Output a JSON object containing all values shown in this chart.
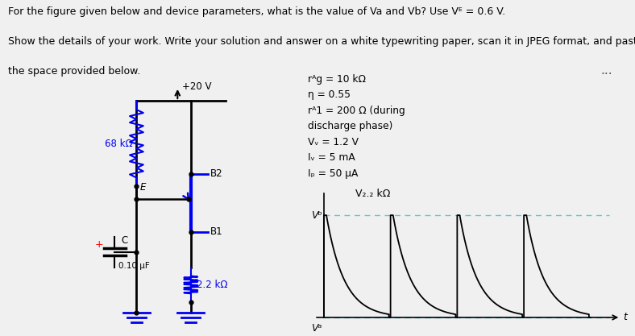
{
  "bg_color": "#f0f0f0",
  "white": "#ffffff",
  "black": "#000000",
  "blue": "#0000EE",
  "red": "#FF0000",
  "cyan_dash": "#5BC8D8",
  "header1": "For the figure given below and device parameters, what is the value of Va and Vb? Use Vᴱ = 0.6 V.",
  "header2": "Show the details of your work. Write your solution and answer on a white typewriting paper, scan it in JPEG format, and paste it into",
  "header3": "the space provided below.",
  "vcc_label": "+20 V",
  "r68_label": "68 kΩ",
  "r22_label": "2.2 kΩ",
  "cap_label": "0.10 μF",
  "c_label": "C",
  "b1_label": "B1",
  "b2_label": "B2",
  "e_label": "E",
  "vb_label": "Vᵇ",
  "va_label": "Vᵃ",
  "v22k_label": "V₂.₂ kΩ",
  "t_label": "t",
  "param1": "rᴬg = 10 kΩ",
  "param2": "η = 0.55",
  "param3": "rᴬ1 = 200 Ω (during",
  "param4": "discharge phase)",
  "param5": "Vᵥ = 1.2 V",
  "param6": "Iᵥ = 5 mA",
  "param7": "Iₚ = 50 μA",
  "dots": "..."
}
